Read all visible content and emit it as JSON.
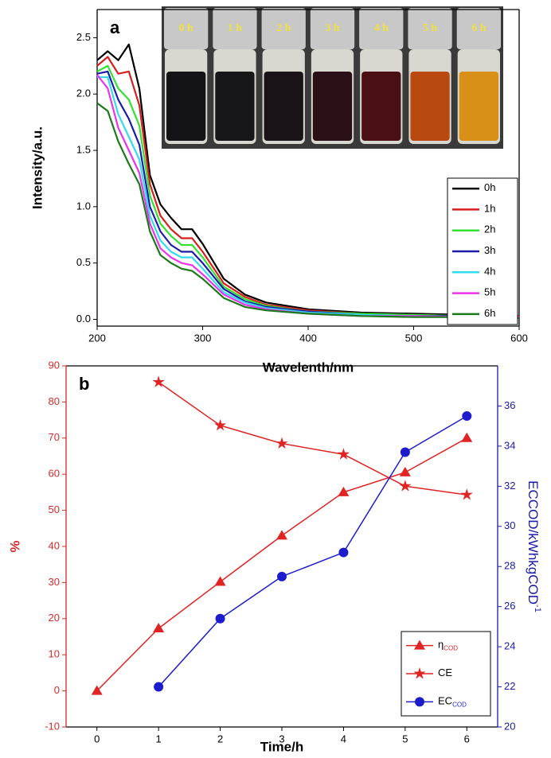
{
  "chart_data": [
    {
      "type": "line",
      "panel": "a",
      "xlabel": "Wavelenth/nm",
      "ylabel": "Intensity/a.u.",
      "x": [
        200,
        210,
        220,
        230,
        240,
        250,
        260,
        270,
        280,
        290,
        300,
        320,
        340,
        360,
        400,
        450,
        500,
        550,
        600
      ],
      "xlim": [
        200,
        600
      ],
      "xticks": [
        200,
        300,
        400,
        500,
        600
      ],
      "ylim": [
        -0.06,
        2.75
      ],
      "yticks": [
        {
          "value": 0,
          "label": "0.0"
        },
        0.5,
        {
          "value": 1,
          "label": "1.0"
        },
        1.5,
        {
          "value": 2,
          "label": "2.0"
        },
        2.5
      ],
      "legend": "lower right",
      "series": [
        {
          "name": "0h",
          "color": "#000000",
          "values": [
            2.3,
            2.38,
            2.3,
            2.44,
            2.05,
            1.28,
            1.02,
            0.9,
            0.8,
            0.8,
            0.67,
            0.36,
            0.22,
            0.15,
            0.09,
            0.06,
            0.05,
            0.04,
            0.03
          ]
        },
        {
          "name": "1h",
          "color": "#d81e1e",
          "values": [
            2.25,
            2.33,
            2.18,
            2.2,
            1.9,
            1.2,
            0.92,
            0.8,
            0.72,
            0.72,
            0.6,
            0.32,
            0.2,
            0.13,
            0.08,
            0.05,
            0.04,
            0.03,
            0.03
          ]
        },
        {
          "name": "2h",
          "color": "#33e033",
          "values": [
            2.2,
            2.25,
            2.05,
            1.95,
            1.72,
            1.1,
            0.85,
            0.74,
            0.66,
            0.66,
            0.55,
            0.29,
            0.18,
            0.12,
            0.07,
            0.05,
            0.04,
            0.03,
            0.02
          ]
        },
        {
          "name": "3h",
          "color": "#1c1ca8",
          "values": [
            2.18,
            2.2,
            1.95,
            1.78,
            1.55,
            1.0,
            0.78,
            0.66,
            0.6,
            0.6,
            0.5,
            0.27,
            0.16,
            0.11,
            0.07,
            0.04,
            0.03,
            0.03,
            0.02
          ]
        },
        {
          "name": "4h",
          "color": "#33dcec",
          "values": [
            2.15,
            2.15,
            1.82,
            1.62,
            1.42,
            0.92,
            0.7,
            0.6,
            0.55,
            0.55,
            0.45,
            0.24,
            0.15,
            0.1,
            0.06,
            0.04,
            0.03,
            0.02,
            0.02
          ]
        },
        {
          "name": "5h",
          "color": "#ec33ec",
          "values": [
            2.17,
            2.05,
            1.7,
            1.5,
            1.3,
            0.85,
            0.63,
            0.55,
            0.5,
            0.48,
            0.4,
            0.22,
            0.13,
            0.09,
            0.05,
            0.03,
            0.03,
            0.02,
            0.02
          ]
        },
        {
          "name": "6h",
          "color": "#1a7a1a",
          "values": [
            1.92,
            1.85,
            1.58,
            1.38,
            1.2,
            0.78,
            0.57,
            0.5,
            0.45,
            0.43,
            0.36,
            0.19,
            0.11,
            0.08,
            0.05,
            0.03,
            0.02,
            0.02,
            0.01
          ]
        }
      ],
      "inset": {
        "labels": [
          "0 h",
          "1 h",
          "2 h",
          "3 h",
          "4 h",
          "5 h",
          "6 h"
        ],
        "colors": [
          "#141416",
          "#17171a",
          "#1a1418",
          "#2a0f16",
          "#4a0f12",
          "#b84a10",
          "#d89018"
        ]
      }
    },
    {
      "type": "line",
      "panel": "b",
      "xlabel": "Time/h",
      "ylabel": "%",
      "y2label": "ECCOD/kWhkgCOD",
      "y2label_sup": "-1",
      "xlim": [
        -0.5,
        6.5
      ],
      "xticks": [
        0,
        1,
        2,
        3,
        4,
        5,
        6
      ],
      "ylim": [
        -10,
        90
      ],
      "yticks": [
        -10,
        0,
        10,
        20,
        30,
        40,
        50,
        60,
        70,
        80,
        90
      ],
      "y2lim": [
        20,
        38
      ],
      "y2ticks": [
        20,
        22,
        24,
        26,
        28,
        30,
        32,
        34,
        36
      ],
      "ycolor": "#d42a2a",
      "y2color": "#1a1aa8",
      "legend": "lower right",
      "series": [
        {
          "name": "η",
          "subscript": "COD",
          "color": "#e02424",
          "marker": "triangle",
          "x": [
            0,
            1,
            2,
            3,
            4,
            5,
            6
          ],
          "values": [
            0,
            17.3,
            30.2,
            43,
            55,
            60.5,
            70
          ]
        },
        {
          "name": "CE",
          "color": "#e02424",
          "marker": "star",
          "x": [
            1,
            2,
            3,
            4,
            5,
            6
          ],
          "values": [
            85.5,
            73.5,
            68.5,
            65.5,
            56.7,
            54.3
          ]
        },
        {
          "name": "EC",
          "subscript": "COD",
          "color": "#1c1ccc",
          "marker": "circle",
          "axis": "y2",
          "x": [
            1,
            2,
            3,
            4,
            5,
            6
          ],
          "values": [
            22.0,
            25.4,
            27.5,
            28.7,
            33.7,
            35.5
          ]
        }
      ]
    }
  ]
}
